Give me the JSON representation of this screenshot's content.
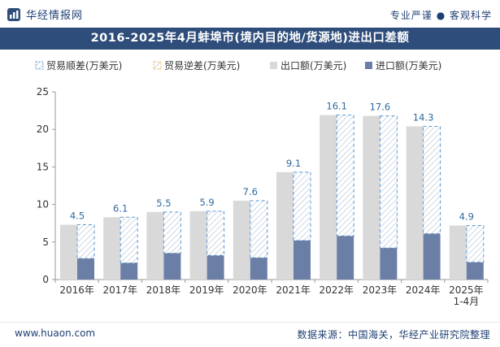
{
  "header": {
    "brand": "华经情报网",
    "slogan": "专业严谨 ● 客观科学"
  },
  "title": "2016-2025年4月蚌埠市(境内目的地/货源地)进出口差额",
  "footer": {
    "website": "www.huaon.com",
    "source": "数据来源：中国海关，华经产业研究院整理"
  },
  "colors": {
    "title_bg": "#2e4d7b",
    "export_bar": "#d9d9d9",
    "import_bar": "#6b7fa6",
    "surplus_border": "#5b9bd5",
    "deficit_border": "#f0c040"
  },
  "chart_data": {
    "type": "bar",
    "title": "2016-2025年4月蚌埠市(境内目的地/货源地)进出口差额",
    "categories": [
      "2016年",
      "2017年",
      "2018年",
      "2019年",
      "2020年",
      "2021年",
      "2022年",
      "2023年",
      "2024年",
      "2025年\n1-4月"
    ],
    "ylim": [
      0,
      25
    ],
    "yticks": [
      0,
      5,
      10,
      15,
      20,
      25
    ],
    "legend": [
      "贸易顺差(万美元)",
      "贸易逆差(万美元)",
      "出口额(万美元)",
      "进口额(万美元)"
    ],
    "legend_position": "top-left",
    "grid": false,
    "series": [
      {
        "name": "贸易顺差(万美元)",
        "values": [
          4.5,
          6.1,
          5.5,
          5.9,
          7.6,
          9.1,
          16.1,
          17.6,
          14.3,
          4.9
        ]
      },
      {
        "name": "贸易逆差(万美元)",
        "values": [
          0,
          0,
          0,
          0,
          0,
          0,
          0,
          0,
          0,
          0
        ]
      },
      {
        "name": "出口额(万美元)",
        "values": [
          7.3,
          8.3,
          9.0,
          9.1,
          10.5,
          14.3,
          21.9,
          21.8,
          20.4,
          7.2
        ]
      },
      {
        "name": "进口额(万美元)",
        "values": [
          2.8,
          2.2,
          3.5,
          3.2,
          2.9,
          5.2,
          5.8,
          4.2,
          6.1,
          2.3
        ]
      }
    ]
  }
}
